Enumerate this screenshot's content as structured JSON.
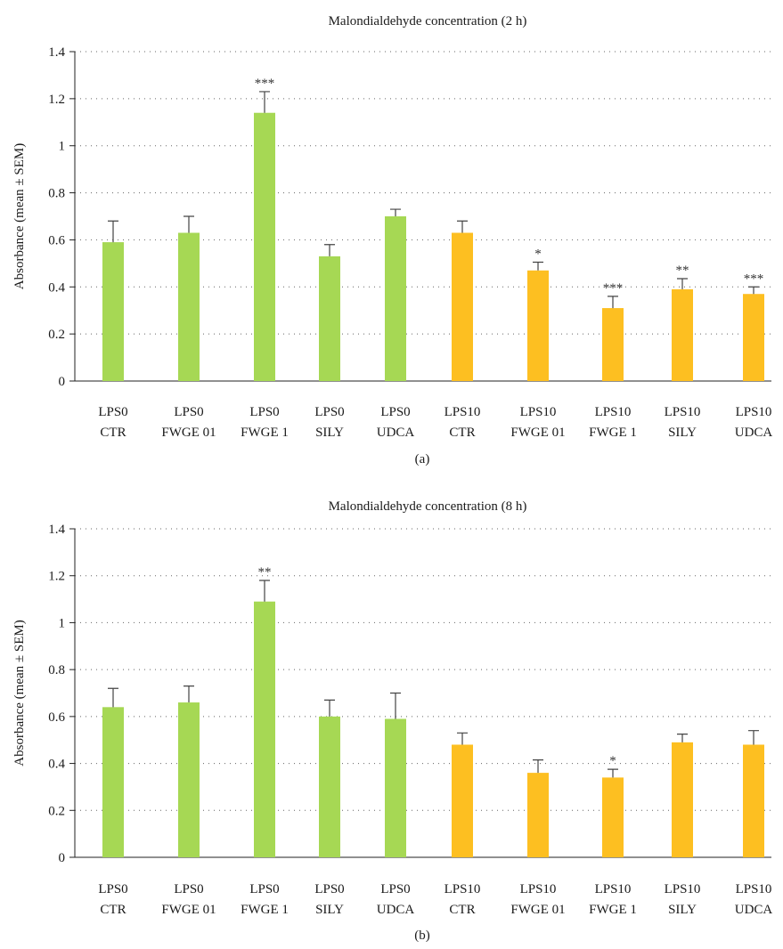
{
  "figure": {
    "panels": [
      "(a)",
      "(b)"
    ]
  },
  "colors": {
    "lps0": "#a6d854",
    "lps10": "#fdbf21",
    "error_bar": "#444444"
  },
  "chart_data": [
    {
      "type": "bar",
      "title": "Malondialdehyde concentration (2 h)",
      "xlabel": "",
      "ylabel": "Absorbance (mean ± SEM)",
      "ylim": [
        0,
        1.4
      ],
      "yticks": [
        0,
        0.2,
        0.4,
        0.6,
        0.8,
        1,
        1.2,
        1.4
      ],
      "ytick_labels": [
        "0",
        "0.2",
        "0.4",
        "0.6",
        "0.8",
        "1",
        "1.2",
        "1.4"
      ],
      "grid": true,
      "categories": [
        [
          "LPS0",
          "CTR"
        ],
        [
          "LPS0",
          "FWGE 01"
        ],
        [
          "LPS0",
          "FWGE 1"
        ],
        [
          "LPS0",
          "SILY"
        ],
        [
          "LPS0",
          "UDCA"
        ],
        [
          "LPS10",
          "CTR"
        ],
        [
          "LPS10",
          "FWGE 01"
        ],
        [
          "LPS10",
          "FWGE 1"
        ],
        [
          "LPS10",
          "SILY"
        ],
        [
          "LPS10",
          "UDCA"
        ]
      ],
      "values": [
        0.59,
        0.63,
        1.14,
        0.53,
        0.7,
        0.63,
        0.47,
        0.31,
        0.39,
        0.37
      ],
      "errors": [
        0.09,
        0.07,
        0.09,
        0.05,
        0.03,
        0.05,
        0.035,
        0.05,
        0.045,
        0.03
      ],
      "significance": [
        "",
        "",
        "***",
        "",
        "",
        "",
        "*",
        "***",
        "**",
        "***"
      ],
      "bar_colors": [
        "lps0",
        "lps0",
        "lps0",
        "lps0",
        "lps0",
        "lps10",
        "lps10",
        "lps10",
        "lps10",
        "lps10"
      ]
    },
    {
      "type": "bar",
      "title": "Malondialdehyde concentration (8 h)",
      "xlabel": "",
      "ylabel": "Absorbance (mean ± SEM)",
      "ylim": [
        0,
        1.4
      ],
      "yticks": [
        0,
        0.2,
        0.4,
        0.6,
        0.8,
        1,
        1.2,
        1.4
      ],
      "ytick_labels": [
        "0",
        "0.2",
        "0.4",
        "0.6",
        "0.8",
        "1",
        "1.2",
        "1.4"
      ],
      "grid": true,
      "categories": [
        [
          "LPS0",
          "CTR"
        ],
        [
          "LPS0",
          "FWGE 01"
        ],
        [
          "LPS0",
          "FWGE 1"
        ],
        [
          "LPS0",
          "SILY"
        ],
        [
          "LPS0",
          "UDCA"
        ],
        [
          "LPS10",
          "CTR"
        ],
        [
          "LPS10",
          "FWGE 01"
        ],
        [
          "LPS10",
          "FWGE 1"
        ],
        [
          "LPS10",
          "SILY"
        ],
        [
          "LPS10",
          "UDCA"
        ]
      ],
      "values": [
        0.64,
        0.66,
        1.09,
        0.6,
        0.59,
        0.48,
        0.36,
        0.34,
        0.49,
        0.48
      ],
      "errors": [
        0.08,
        0.07,
        0.09,
        0.07,
        0.11,
        0.05,
        0.055,
        0.035,
        0.035,
        0.06
      ],
      "significance": [
        "",
        "",
        "**",
        "",
        "",
        "",
        "",
        "*",
        "",
        ""
      ],
      "bar_colors": [
        "lps0",
        "lps0",
        "lps0",
        "lps0",
        "lps0",
        "lps10",
        "lps10",
        "lps10",
        "lps10",
        "lps10"
      ]
    }
  ]
}
